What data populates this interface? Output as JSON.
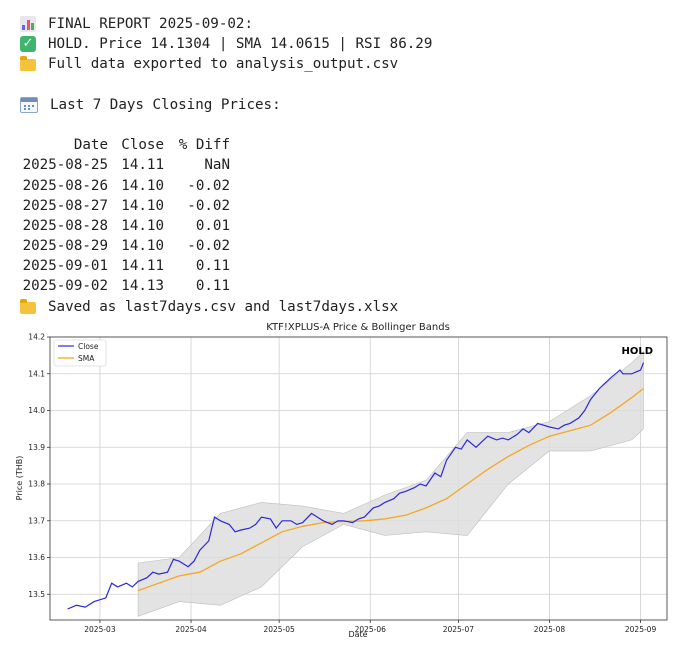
{
  "report": {
    "title_line": "FINAL REPORT 2025-09-02:",
    "status_line": "HOLD. Price 14.1304 | SMA 14.0615 | RSI 86.29",
    "export_line": "Full data exported to analysis_output.csv",
    "last7_heading": "Last 7 Days Closing Prices:",
    "saved_line": "Saved as last7days.csv and last7days.xlsx",
    "icons": [
      "bar-chart-icon",
      "check-icon",
      "folder-icon",
      "calendar-icon",
      "folder-icon"
    ]
  },
  "table": {
    "headers": [
      "Date",
      "Close",
      "% Diff"
    ],
    "rows": [
      [
        "2025-08-25",
        "14.11",
        "NaN"
      ],
      [
        "2025-08-26",
        "14.10",
        "-0.02"
      ],
      [
        "2025-08-27",
        "14.10",
        "-0.02"
      ],
      [
        "2025-08-28",
        "14.10",
        "0.01"
      ],
      [
        "2025-08-29",
        "14.10",
        "-0.02"
      ],
      [
        "2025-09-01",
        "14.11",
        "0.11"
      ],
      [
        "2025-09-02",
        "14.13",
        "0.11"
      ]
    ]
  },
  "chart_data": {
    "type": "line",
    "title": "KTF!XPLUS-A Price & Bollinger Bands",
    "xlabel": "Date",
    "ylabel": "Price (THB)",
    "annotation": "HOLD",
    "legend_position": "top-left",
    "grid": true,
    "xlim": [
      "2025-02-12",
      "2025-09-10"
    ],
    "ylim": [
      13.43,
      14.2
    ],
    "x_ticks": [
      "2025-03",
      "2025-04",
      "2025-05",
      "2025-06",
      "2025-07",
      "2025-08",
      "2025-09"
    ],
    "y_ticks": [
      13.5,
      13.6,
      13.7,
      13.8,
      13.9,
      14.0,
      14.1,
      14.2
    ],
    "colors": {
      "close": "#2a2ad8",
      "sma": "#f5a623",
      "band": "#dcdcdc"
    },
    "series": [
      {
        "name": "Close",
        "points": [
          [
            "2025-02-18",
            13.46
          ],
          [
            "2025-02-21",
            13.47
          ],
          [
            "2025-02-24",
            13.465
          ],
          [
            "2025-02-27",
            13.48
          ],
          [
            "2025-03-03",
            13.49
          ],
          [
            "2025-03-05",
            13.53
          ],
          [
            "2025-03-07",
            13.52
          ],
          [
            "2025-03-10",
            13.53
          ],
          [
            "2025-03-12",
            13.52
          ],
          [
            "2025-03-14",
            13.535
          ],
          [
            "2025-03-17",
            13.545
          ],
          [
            "2025-03-19",
            13.56
          ],
          [
            "2025-03-21",
            13.555
          ],
          [
            "2025-03-24",
            13.56
          ],
          [
            "2025-03-26",
            13.595
          ],
          [
            "2025-03-28",
            13.59
          ],
          [
            "2025-03-31",
            13.575
          ],
          [
            "2025-04-02",
            13.59
          ],
          [
            "2025-04-04",
            13.62
          ],
          [
            "2025-04-07",
            13.645
          ],
          [
            "2025-04-09",
            13.71
          ],
          [
            "2025-04-11",
            13.7
          ],
          [
            "2025-04-14",
            13.69
          ],
          [
            "2025-04-16",
            13.67
          ],
          [
            "2025-04-18",
            13.675
          ],
          [
            "2025-04-21",
            13.68
          ],
          [
            "2025-04-23",
            13.69
          ],
          [
            "2025-04-25",
            13.71
          ],
          [
            "2025-04-28",
            13.705
          ],
          [
            "2025-04-30",
            13.68
          ],
          [
            "2025-05-02",
            13.7
          ],
          [
            "2025-05-05",
            13.7
          ],
          [
            "2025-05-07",
            13.69
          ],
          [
            "2025-05-09",
            13.695
          ],
          [
            "2025-05-12",
            13.72
          ],
          [
            "2025-05-14",
            13.71
          ],
          [
            "2025-05-16",
            13.7
          ],
          [
            "2025-05-19",
            13.69
          ],
          [
            "2025-05-21",
            13.7
          ],
          [
            "2025-05-23",
            13.7
          ],
          [
            "2025-05-26",
            13.695
          ],
          [
            "2025-05-28",
            13.705
          ],
          [
            "2025-05-30",
            13.71
          ],
          [
            "2025-06-02",
            13.735
          ],
          [
            "2025-06-04",
            13.74
          ],
          [
            "2025-06-06",
            13.75
          ],
          [
            "2025-06-09",
            13.76
          ],
          [
            "2025-06-11",
            13.775
          ],
          [
            "2025-06-13",
            13.78
          ],
          [
            "2025-06-16",
            13.79
          ],
          [
            "2025-06-18",
            13.8
          ],
          [
            "2025-06-20",
            13.795
          ],
          [
            "2025-06-23",
            13.83
          ],
          [
            "2025-06-25",
            13.82
          ],
          [
            "2025-06-27",
            13.865
          ],
          [
            "2025-06-30",
            13.9
          ],
          [
            "2025-07-02",
            13.895
          ],
          [
            "2025-07-04",
            13.92
          ],
          [
            "2025-07-07",
            13.9
          ],
          [
            "2025-07-09",
            13.915
          ],
          [
            "2025-07-11",
            13.93
          ],
          [
            "2025-07-14",
            13.92
          ],
          [
            "2025-07-16",
            13.925
          ],
          [
            "2025-07-18",
            13.92
          ],
          [
            "2025-07-21",
            13.935
          ],
          [
            "2025-07-23",
            13.95
          ],
          [
            "2025-07-25",
            13.94
          ],
          [
            "2025-07-28",
            13.965
          ],
          [
            "2025-07-30",
            13.96
          ],
          [
            "2025-08-01",
            13.955
          ],
          [
            "2025-08-04",
            13.95
          ],
          [
            "2025-08-06",
            13.96
          ],
          [
            "2025-08-08",
            13.965
          ],
          [
            "2025-08-11",
            13.98
          ],
          [
            "2025-08-13",
            14.0
          ],
          [
            "2025-08-15",
            14.03
          ],
          [
            "2025-08-18",
            14.06
          ],
          [
            "2025-08-20",
            14.075
          ],
          [
            "2025-08-22",
            14.09
          ],
          [
            "2025-08-25",
            14.11
          ],
          [
            "2025-08-26",
            14.1
          ],
          [
            "2025-08-27",
            14.1
          ],
          [
            "2025-08-28",
            14.1
          ],
          [
            "2025-08-29",
            14.1
          ],
          [
            "2025-09-01",
            14.11
          ],
          [
            "2025-09-02",
            14.13
          ]
        ]
      },
      {
        "name": "SMA",
        "points": [
          [
            "2025-03-14",
            13.51
          ],
          [
            "2025-03-21",
            13.53
          ],
          [
            "2025-03-28",
            13.55
          ],
          [
            "2025-04-04",
            13.56
          ],
          [
            "2025-04-11",
            13.59
          ],
          [
            "2025-04-18",
            13.61
          ],
          [
            "2025-04-25",
            13.64
          ],
          [
            "2025-05-02",
            13.67
          ],
          [
            "2025-05-09",
            13.685
          ],
          [
            "2025-05-16",
            13.695
          ],
          [
            "2025-05-23",
            13.698
          ],
          [
            "2025-05-30",
            13.7
          ],
          [
            "2025-06-06",
            13.705
          ],
          [
            "2025-06-13",
            13.715
          ],
          [
            "2025-06-20",
            13.735
          ],
          [
            "2025-06-27",
            13.76
          ],
          [
            "2025-07-04",
            13.8
          ],
          [
            "2025-07-11",
            13.84
          ],
          [
            "2025-07-18",
            13.875
          ],
          [
            "2025-07-25",
            13.905
          ],
          [
            "2025-08-01",
            13.93
          ],
          [
            "2025-08-08",
            13.945
          ],
          [
            "2025-08-15",
            13.96
          ],
          [
            "2025-08-22",
            13.995
          ],
          [
            "2025-08-29",
            14.035
          ],
          [
            "2025-09-02",
            14.06
          ]
        ]
      },
      {
        "name": "Upper Band",
        "points": [
          [
            "2025-03-14",
            13.585
          ],
          [
            "2025-03-28",
            13.6
          ],
          [
            "2025-04-11",
            13.72
          ],
          [
            "2025-04-25",
            13.75
          ],
          [
            "2025-05-09",
            13.74
          ],
          [
            "2025-05-23",
            13.72
          ],
          [
            "2025-06-06",
            13.77
          ],
          [
            "2025-06-20",
            13.81
          ],
          [
            "2025-07-04",
            13.94
          ],
          [
            "2025-07-18",
            13.94
          ],
          [
            "2025-08-01",
            13.97
          ],
          [
            "2025-08-15",
            14.04
          ],
          [
            "2025-08-29",
            14.13
          ],
          [
            "2025-09-02",
            14.16
          ]
        ]
      },
      {
        "name": "Lower Band",
        "points": [
          [
            "2025-03-14",
            13.44
          ],
          [
            "2025-03-28",
            13.48
          ],
          [
            "2025-04-11",
            13.47
          ],
          [
            "2025-04-25",
            13.52
          ],
          [
            "2025-05-09",
            13.63
          ],
          [
            "2025-05-23",
            13.69
          ],
          [
            "2025-06-06",
            13.66
          ],
          [
            "2025-06-20",
            13.67
          ],
          [
            "2025-07-04",
            13.66
          ],
          [
            "2025-07-18",
            13.8
          ],
          [
            "2025-08-01",
            13.89
          ],
          [
            "2025-08-15",
            13.89
          ],
          [
            "2025-08-29",
            13.92
          ],
          [
            "2025-09-02",
            13.95
          ]
        ]
      }
    ]
  }
}
